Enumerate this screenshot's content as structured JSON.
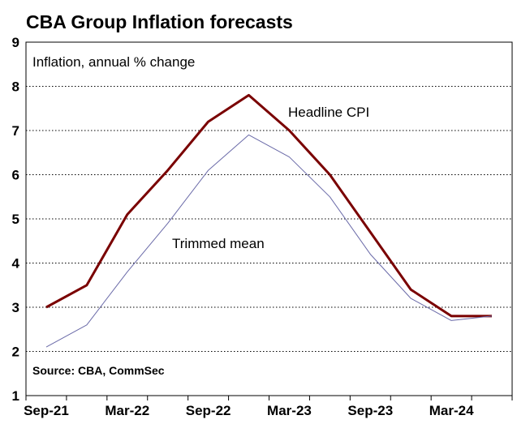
{
  "chart_data": {
    "type": "line",
    "title": "CBA Group Inflation forecasts",
    "ylabel": "Inflation, annual % change",
    "source": "Source: CBA, CommSec",
    "ylim": [
      1,
      9
    ],
    "yticks": [
      1,
      2,
      3,
      4,
      5,
      6,
      7,
      8,
      9
    ],
    "x": [
      "Sep-21",
      "Dec-21",
      "Mar-22",
      "Jun-22",
      "Sep-22",
      "Dec-22",
      "Mar-23",
      "Jun-23",
      "Sep-23",
      "Dec-23",
      "Mar-24",
      "Jun-24"
    ],
    "xtick_labels": [
      "Sep-21",
      "Mar-22",
      "Sep-22",
      "Mar-23",
      "Sep-23",
      "Mar-24"
    ],
    "grid": "horizontal dotted",
    "series": [
      {
        "name": "Headline CPI",
        "color": "#7a0000",
        "values": [
          3.0,
          3.5,
          5.1,
          6.1,
          7.2,
          7.8,
          7.0,
          6.0,
          4.7,
          3.4,
          2.8,
          2.8
        ]
      },
      {
        "name": "Trimmed mean",
        "color": "#6a6aa8",
        "values": [
          2.1,
          2.6,
          3.8,
          4.9,
          6.1,
          6.9,
          6.4,
          5.5,
          4.2,
          3.2,
          2.7,
          2.8
        ]
      }
    ]
  }
}
